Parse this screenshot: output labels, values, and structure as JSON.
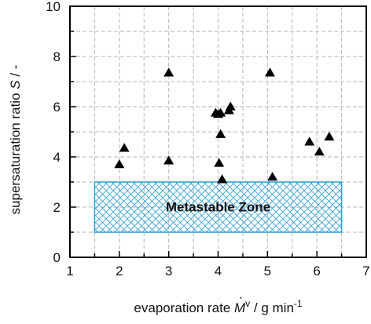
{
  "chart_data": {
    "type": "scatter",
    "title": "",
    "xlabel": {
      "prefix": "evaporation rate  ",
      "symbol": "M",
      "sup": "v",
      "unit": " / g min",
      "unit_sup": "-1"
    },
    "ylabel": {
      "text": "supersaturation ratio  ",
      "symbol": "S",
      "unit": " / -"
    },
    "xlim": [
      1,
      7
    ],
    "ylim": [
      0,
      10
    ],
    "xticks": [
      "1",
      "2",
      "3",
      "4",
      "5",
      "6",
      "7"
    ],
    "yticks": [
      "0",
      "2",
      "4",
      "6",
      "8",
      "10"
    ],
    "grid": true,
    "marker": "triangle",
    "marker_color": "#000000",
    "points": [
      {
        "x": 2.0,
        "y": 3.7
      },
      {
        "x": 2.1,
        "y": 4.35
      },
      {
        "x": 3.0,
        "y": 7.35
      },
      {
        "x": 3.0,
        "y": 3.85
      },
      {
        "x": 3.95,
        "y": 5.75
      },
      {
        "x": 4.0,
        "y": 5.7
      },
      {
        "x": 4.05,
        "y": 5.75
      },
      {
        "x": 4.02,
        "y": 3.75
      },
      {
        "x": 4.05,
        "y": 4.9
      },
      {
        "x": 4.08,
        "y": 3.1
      },
      {
        "x": 4.22,
        "y": 5.85
      },
      {
        "x": 4.25,
        "y": 6.0
      },
      {
        "x": 5.05,
        "y": 7.35
      },
      {
        "x": 5.1,
        "y": 3.2
      },
      {
        "x": 5.85,
        "y": 4.6
      },
      {
        "x": 6.05,
        "y": 4.2
      },
      {
        "x": 6.25,
        "y": 4.8
      }
    ],
    "zone": {
      "label": "Metastable Zone",
      "x_range": [
        1.5,
        6.5
      ],
      "y_range": [
        1,
        3
      ],
      "color": "#2a9fd6"
    }
  }
}
